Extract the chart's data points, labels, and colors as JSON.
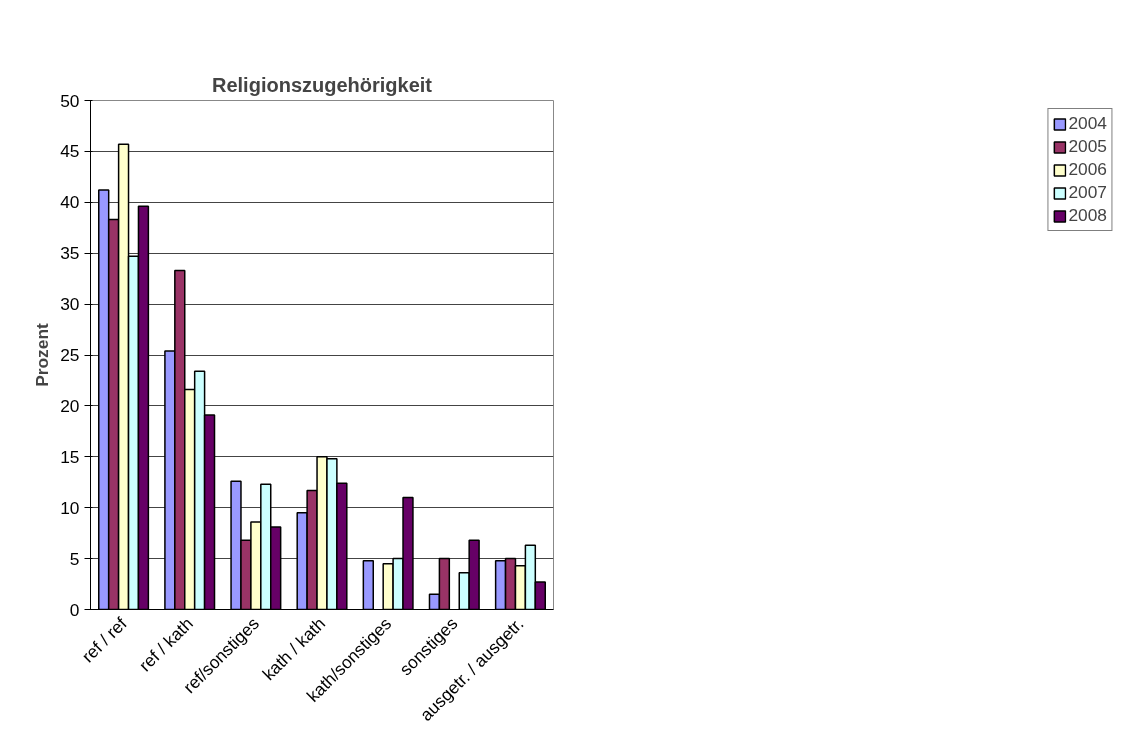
{
  "chart_data": {
    "type": "bar",
    "title": "Religionszugehörigkeit",
    "ylabel": "Prozent",
    "categories": [
      "ref / ref",
      "ref / kath",
      "ref/sonstiges",
      "kath / kath",
      "kath/sonstiges",
      "sonstiges",
      "ausgetr. / ausgetr."
    ],
    "series": [
      {
        "name": "2004",
        "color": "#9999ff",
        "values": [
          41.2,
          25.4,
          12.6,
          9.5,
          4.8,
          1.5,
          4.8
        ]
      },
      {
        "name": "2005",
        "color": "#993366",
        "values": [
          38.3,
          33.3,
          6.8,
          11.7,
          null,
          5.0,
          5.0
        ]
      },
      {
        "name": "2006",
        "color": "#ffffcc",
        "values": [
          45.7,
          21.6,
          8.6,
          15.0,
          4.5,
          null,
          4.3
        ]
      },
      {
        "name": "2007",
        "color": "#ccffff",
        "values": [
          34.7,
          23.4,
          12.3,
          14.8,
          5.0,
          3.6,
          6.3
        ]
      },
      {
        "name": "2008",
        "color": "#660066",
        "values": [
          39.6,
          19.1,
          8.1,
          12.4,
          11.0,
          6.8,
          2.7
        ]
      }
    ],
    "ylim": [
      0,
      50
    ],
    "yticks": [
      0,
      5,
      10,
      15,
      20,
      25,
      30,
      35,
      40,
      45,
      50
    ],
    "grid": "y",
    "legend": "right"
  }
}
